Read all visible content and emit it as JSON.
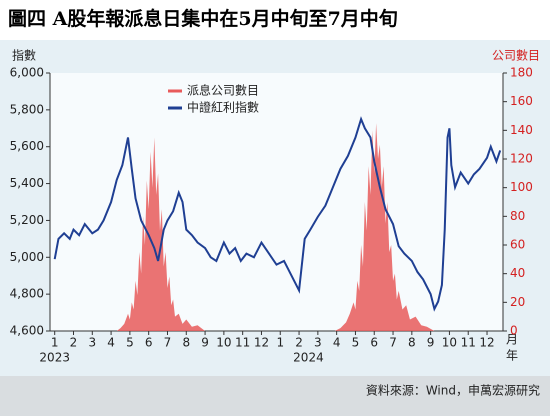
{
  "chart_data": {
    "type": "line",
    "title": "圖四  A股年報派息日集中在5月中旬至7月中旬",
    "y_label": "指數",
    "y2_label": "公司數目",
    "x_unit_label": "月",
    "year_unit_label": "年",
    "source": "資料來源：Wind，申萬宏源研究",
    "xlim": [
      0.75,
      24.85
    ],
    "xticks": [
      {
        "value": 1,
        "label": "1"
      },
      {
        "value": 2,
        "label": "2"
      },
      {
        "value": 3,
        "label": "3"
      },
      {
        "value": 4,
        "label": "4"
      },
      {
        "value": 5,
        "label": "5"
      },
      {
        "value": 6,
        "label": "6"
      },
      {
        "value": 7,
        "label": "7"
      },
      {
        "value": 8,
        "label": "8"
      },
      {
        "value": 9,
        "label": "9"
      },
      {
        "value": 10,
        "label": "10"
      },
      {
        "value": 11,
        "label": "11"
      },
      {
        "value": 12,
        "label": "12"
      },
      {
        "value": 13,
        "label": "1"
      },
      {
        "value": 14,
        "label": "2"
      },
      {
        "value": 15,
        "label": "3"
      },
      {
        "value": 16,
        "label": "4"
      },
      {
        "value": 17,
        "label": "5"
      },
      {
        "value": 18,
        "label": "6"
      },
      {
        "value": 19,
        "label": "7"
      },
      {
        "value": 20,
        "label": "8"
      },
      {
        "value": 21,
        "label": "9"
      },
      {
        "value": 22,
        "label": "10"
      },
      {
        "value": 23,
        "label": "11"
      },
      {
        "value": 24,
        "label": "12"
      }
    ],
    "year_labels": [
      {
        "value": 1,
        "label": "2023"
      },
      {
        "value": 14.5,
        "label": "2024"
      }
    ],
    "ylim": [
      4600,
      6000
    ],
    "yticks": [
      {
        "value": 4600,
        "label": "4,600"
      },
      {
        "value": 4800,
        "label": "4,800"
      },
      {
        "value": 5000,
        "label": "5,000"
      },
      {
        "value": 5200,
        "label": "5,200"
      },
      {
        "value": 5400,
        "label": "5,400"
      },
      {
        "value": 5600,
        "label": "5,600"
      },
      {
        "value": 5800,
        "label": "5,800"
      },
      {
        "value": 6000,
        "label": "6,000"
      }
    ],
    "y2lim": [
      0,
      180
    ],
    "y2ticks": [
      0,
      20,
      40,
      60,
      80,
      100,
      120,
      140,
      160,
      180
    ],
    "legend": "upper left",
    "series": [
      {
        "name": "派息公司數目",
        "type": "area",
        "axis": "y2",
        "color": "#e85a5a",
        "x": [
          4.3,
          4.5,
          4.7,
          4.9,
          5.0,
          5.1,
          5.2,
          5.3,
          5.4,
          5.5,
          5.6,
          5.7,
          5.8,
          5.9,
          6.0,
          6.1,
          6.2,
          6.3,
          6.4,
          6.5,
          6.6,
          6.7,
          6.8,
          6.9,
          7.0,
          7.1,
          7.2,
          7.3,
          7.4,
          7.6,
          7.8,
          8.0,
          8.3,
          8.6,
          9.0,
          15.9,
          16.2,
          16.5,
          16.7,
          16.9,
          17.0,
          17.1,
          17.2,
          17.3,
          17.4,
          17.5,
          17.6,
          17.7,
          17.8,
          17.9,
          18.0,
          18.1,
          18.2,
          18.3,
          18.4,
          18.5,
          18.6,
          18.7,
          18.8,
          18.9,
          19.0,
          19.1,
          19.2,
          19.3,
          19.5,
          19.7,
          19.9,
          20.2,
          20.5,
          20.8,
          21.2
        ],
        "values": [
          0,
          2,
          5,
          12,
          8,
          20,
          15,
          35,
          25,
          55,
          40,
          80,
          60,
          105,
          85,
          125,
          100,
          135,
          95,
          110,
          70,
          85,
          45,
          55,
          30,
          38,
          18,
          22,
          10,
          12,
          5,
          8,
          3,
          4,
          0,
          0,
          2,
          6,
          12,
          20,
          15,
          35,
          28,
          60,
          45,
          90,
          70,
          115,
          95,
          140,
          110,
          145,
          120,
          130,
          100,
          115,
          75,
          90,
          55,
          60,
          35,
          40,
          22,
          28,
          15,
          18,
          8,
          10,
          4,
          3,
          0
        ]
      },
      {
        "name": "中證紅利指數",
        "type": "line",
        "color": "#1f3f93",
        "x": [
          1.0,
          1.2,
          1.5,
          1.8,
          2.0,
          2.3,
          2.6,
          3.0,
          3.3,
          3.6,
          4.0,
          4.3,
          4.6,
          4.8,
          4.9,
          5.1,
          5.3,
          5.6,
          6.0,
          6.3,
          6.5,
          6.8,
          7.0,
          7.3,
          7.6,
          7.8,
          8.0,
          8.3,
          8.6,
          9.0,
          9.3,
          9.6,
          10.0,
          10.3,
          10.6,
          10.9,
          11.2,
          11.6,
          12.0,
          12.4,
          12.8,
          13.2,
          13.6,
          14.0,
          14.3,
          14.6,
          15.0,
          15.4,
          15.8,
          16.2,
          16.6,
          17.0,
          17.3,
          17.5,
          17.8,
          18.0,
          18.3,
          18.6,
          19.0,
          19.3,
          19.6,
          20.0,
          20.3,
          20.6,
          21.0,
          21.2,
          21.4,
          21.6,
          21.75,
          21.9,
          22.0,
          22.1,
          22.3,
          22.6,
          23.0,
          23.3,
          23.6,
          24.0,
          24.2,
          24.5,
          24.7
        ],
        "values": [
          4990,
          5100,
          5130,
          5100,
          5150,
          5120,
          5180,
          5130,
          5150,
          5200,
          5300,
          5420,
          5500,
          5600,
          5650,
          5480,
          5320,
          5200,
          5120,
          5050,
          4980,
          5150,
          5200,
          5250,
          5350,
          5300,
          5150,
          5120,
          5080,
          5050,
          5000,
          4980,
          5080,
          5020,
          5050,
          4980,
          5020,
          5000,
          5080,
          5020,
          4960,
          4980,
          4900,
          4820,
          5100,
          5150,
          5220,
          5280,
          5380,
          5480,
          5550,
          5650,
          5750,
          5700,
          5650,
          5520,
          5380,
          5260,
          5180,
          5060,
          5020,
          4980,
          4920,
          4880,
          4800,
          4720,
          4760,
          4850,
          5150,
          5650,
          5700,
          5500,
          5380,
          5460,
          5400,
          5450,
          5480,
          5540,
          5600,
          5520,
          5580
        ]
      }
    ]
  }
}
